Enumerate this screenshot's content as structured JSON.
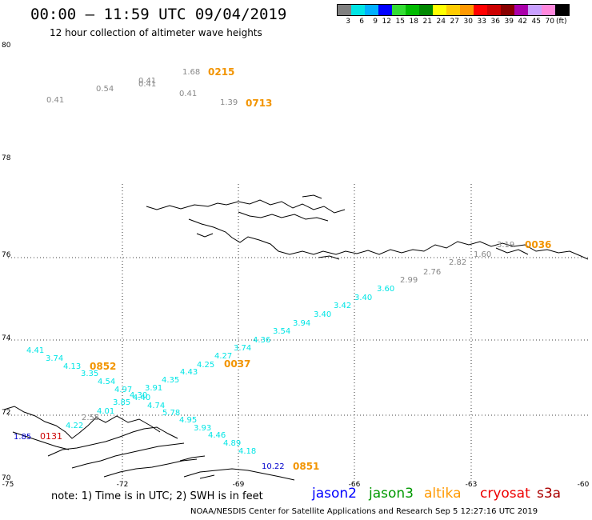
{
  "title": "00:00 – 11:59 UTC 09/04/2019",
  "subtitle": "12 hour collection of altimeter wave heights",
  "legend": {
    "colors": [
      "#808080",
      "#00e5e5",
      "#00b0ff",
      "#0000ff",
      "#33dd33",
      "#00bb00",
      "#008800",
      "#ffff00",
      "#ffcc00",
      "#ff9900",
      "#ff0000",
      "#cc0000",
      "#880000",
      "#aa00aa",
      "#c9a0ff",
      "#ff88dd",
      "#000000"
    ],
    "ticks": [
      "3",
      "6",
      "9",
      "12",
      "15",
      "18",
      "21",
      "24",
      "27",
      "30",
      "33",
      "36",
      "39",
      "42",
      "45",
      "70"
    ],
    "unit": "(ft)"
  },
  "lat_labels": [
    "80",
    "78",
    "76",
    "74",
    "72",
    "70"
  ],
  "lon_labels": [
    "-75",
    "-72",
    "-69",
    "-66",
    "-63",
    "-60"
  ],
  "points": [
    {
      "v": "1.68",
      "c": "#888888"
    },
    {
      "v": "0.41",
      "c": "#888888"
    },
    {
      "v": "0.41",
      "c": "#888888"
    },
    {
      "v": "0.54",
      "c": "#888888"
    },
    {
      "v": "0.41",
      "c": "#888888"
    },
    {
      "v": "0.41",
      "c": "#888888"
    },
    {
      "v": "1.39",
      "c": "#888888"
    },
    {
      "v": "3.19",
      "c": "#888888"
    },
    {
      "v": "1.60",
      "c": "#888888"
    },
    {
      "v": "2.82",
      "c": "#888888"
    },
    {
      "v": "2.76",
      "c": "#888888"
    },
    {
      "v": "2.99",
      "c": "#888888"
    },
    {
      "v": "3.60",
      "c": "#00e5e5"
    },
    {
      "v": "3.40",
      "c": "#00e5e5"
    },
    {
      "v": "3.42",
      "c": "#00e5e5"
    },
    {
      "v": "3.40",
      "c": "#00e5e5"
    },
    {
      "v": "3.94",
      "c": "#00e5e5"
    },
    {
      "v": "3.54",
      "c": "#00e5e5"
    },
    {
      "v": "4.36",
      "c": "#00e5e5"
    },
    {
      "v": "3.74",
      "c": "#00e5e5"
    },
    {
      "v": "4.27",
      "c": "#00e5e5"
    },
    {
      "v": "4.25",
      "c": "#00e5e5"
    },
    {
      "v": "4.43",
      "c": "#00e5e5"
    },
    {
      "v": "4.35",
      "c": "#00e5e5"
    },
    {
      "v": "3.91",
      "c": "#00e5e5"
    },
    {
      "v": "4.97",
      "c": "#00e5e5"
    },
    {
      "v": "4.30",
      "c": "#00e5e5"
    },
    {
      "v": "4.40",
      "c": "#00e5e5"
    },
    {
      "v": "3.85",
      "c": "#00e5e5"
    },
    {
      "v": "4.74",
      "c": "#00e5e5"
    },
    {
      "v": "5.78",
      "c": "#00e5e5"
    },
    {
      "v": "4.95",
      "c": "#00e5e5"
    },
    {
      "v": "3.93",
      "c": "#00e5e5"
    },
    {
      "v": "4.46",
      "c": "#00e5e5"
    },
    {
      "v": "4.89",
      "c": "#00e5e5"
    },
    {
      "v": "4.18",
      "c": "#00e5e5"
    },
    {
      "v": "4.41",
      "c": "#00e5e5"
    },
    {
      "v": "3.74",
      "c": "#00e5e5"
    },
    {
      "v": "4.13",
      "c": "#00e5e5"
    },
    {
      "v": "3.35",
      "c": "#00e5e5"
    },
    {
      "v": "4.54",
      "c": "#00e5e5"
    },
    {
      "v": "4.01",
      "c": "#00e5e5"
    },
    {
      "v": "2.55",
      "c": "#888888"
    },
    {
      "v": "4.22",
      "c": "#00e5e5"
    },
    {
      "v": "1.85",
      "c": "#0000cc"
    },
    {
      "v": "10.22",
      "c": "#0000cc"
    }
  ],
  "times": [
    "0215",
    "0713",
    "0036",
    "0852",
    "0037",
    "0851",
    "0131"
  ],
  "note": "note: 1) Time is in UTC; 2) SWH is in feet",
  "satellites": [
    {
      "name": "jason2",
      "color": "#0000ff"
    },
    {
      "name": "jason3",
      "color": "#009900"
    },
    {
      "name": "altika",
      "color": "#ff9900"
    },
    {
      "name": "cryosat",
      "color": "#ee0000"
    },
    {
      "name": "s3a",
      "color": "#aa0000"
    }
  ],
  "footer": "NOAA/NESDIS Center for Satellite Applications and Research     Sep  5 12:27:16 UTC 2019"
}
